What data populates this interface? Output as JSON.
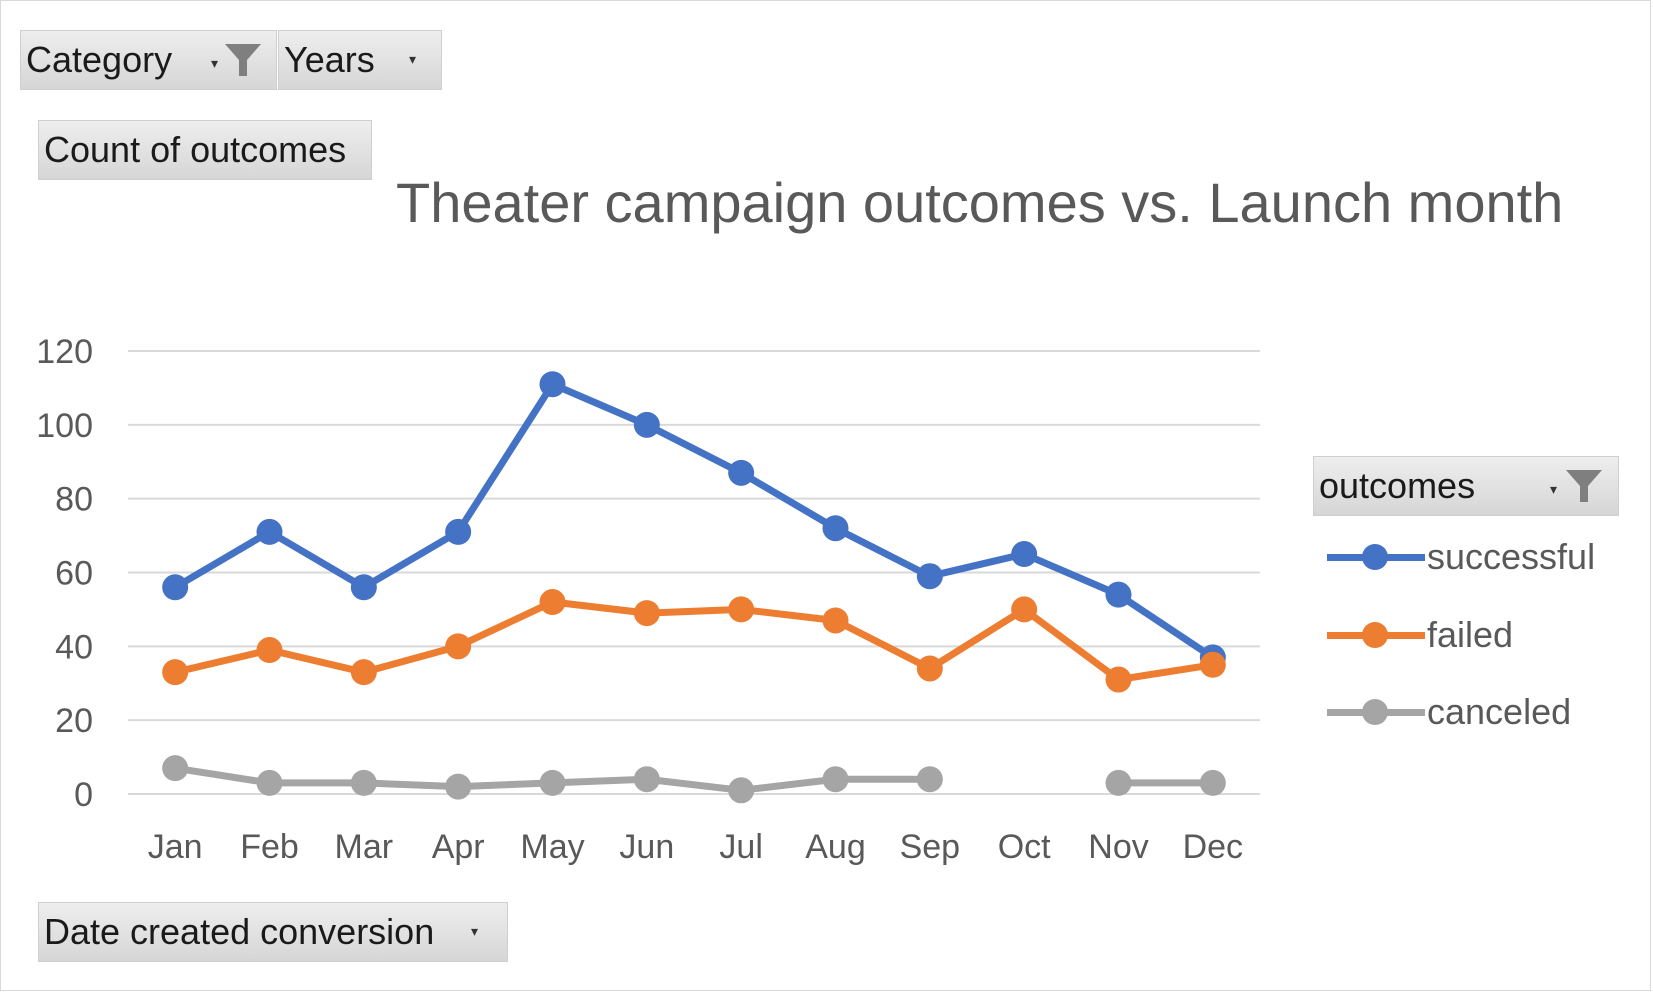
{
  "filters": {
    "category_label": "Category",
    "years_label": "Years",
    "values_label": "Count of outcomes",
    "legend_filter_label": "outcomes",
    "axis_filter_label": "Date created conversion"
  },
  "colors": {
    "successful": "#4472c4",
    "failed": "#ed7d31",
    "canceled": "#a5a5a5",
    "gridline": "#d9d9d9",
    "text": "#595959"
  },
  "chart_data": {
    "type": "line",
    "title": "Theater campaign outcomes vs. Launch month",
    "xlabel": "",
    "ylabel": "",
    "categories": [
      "Jan",
      "Feb",
      "Mar",
      "Apr",
      "May",
      "Jun",
      "Jul",
      "Aug",
      "Sep",
      "Oct",
      "Nov",
      "Dec"
    ],
    "ylim": [
      0,
      120
    ],
    "yticks": [
      0,
      20,
      40,
      60,
      80,
      100,
      120
    ],
    "grid": true,
    "legend_position": "right",
    "series": [
      {
        "name": "successful",
        "values": [
          56,
          71,
          56,
          71,
          111,
          100,
          87,
          72,
          59,
          65,
          54,
          37
        ]
      },
      {
        "name": "failed",
        "values": [
          33,
          39,
          33,
          40,
          52,
          49,
          50,
          47,
          34,
          50,
          31,
          35
        ]
      },
      {
        "name": "canceled",
        "values": [
          7,
          3,
          3,
          2,
          3,
          4,
          1,
          4,
          4,
          null,
          3,
          3
        ]
      }
    ]
  }
}
